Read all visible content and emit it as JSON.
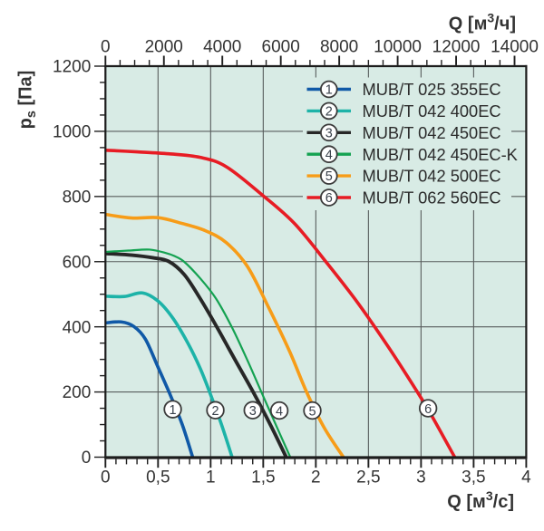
{
  "page": {
    "background": "#ffffff",
    "description": "Fan performance curves: static pressure versus air flow"
  },
  "chart_data": {
    "type": "line",
    "title": "",
    "plot": {
      "background": "#d8ebe5",
      "grid_color": "#585d5d",
      "border_color": "#1c1c1c",
      "x_min": 0,
      "x_max": 4,
      "y_min": 0,
      "y_max": 1200,
      "x_grid_step": 0.5,
      "y_grid_step": 200,
      "grid": true,
      "legend_position": "top-right-inside"
    },
    "axis_bottom": {
      "label_pre": "Q [м",
      "label_sup": "3",
      "label_post": "/с]",
      "tick_values": [
        0,
        0.5,
        1,
        1.5,
        2,
        2.5,
        3,
        3.5,
        4
      ],
      "tick_labels": [
        "0",
        "0,5",
        "1",
        "1,5",
        "2",
        "2,5",
        "3",
        "3,5",
        "4"
      ],
      "minor_step": 0.1
    },
    "axis_top": {
      "label_pre": "Q [м",
      "label_sup": "3",
      "label_post": "/ч]",
      "unit_per_bottom_unit": 3600,
      "tick_values": [
        0,
        2000,
        4000,
        6000,
        8000,
        10000,
        12000,
        14000
      ],
      "tick_labels": [
        "0",
        "2000",
        "4000",
        "6000",
        "8000",
        "10000",
        "12000",
        "14000"
      ],
      "minor_step": 500
    },
    "axis_left": {
      "label_pre": "p",
      "label_sub": "s",
      "label_post": " [Па]",
      "tick_values": [
        0,
        200,
        400,
        600,
        800,
        1000,
        1200
      ],
      "tick_labels": [
        "0",
        "200",
        "400",
        "600",
        "800",
        "1000",
        "1200"
      ],
      "minor_step": 50
    },
    "series": [
      {
        "number": "1",
        "name": "MUB/T 025 355EC",
        "color": "#1059a7",
        "width": 3.6,
        "points": [
          [
            0,
            412
          ],
          [
            0.15,
            415
          ],
          [
            0.27,
            401
          ],
          [
            0.38,
            362
          ],
          [
            0.5,
            276
          ],
          [
            0.62,
            188
          ],
          [
            0.73,
            100
          ],
          [
            0.829,
            0
          ]
        ],
        "marker": {
          "x": 0.64,
          "y": 147
        }
      },
      {
        "number": "2",
        "name": "MUB/T 042 400EC",
        "color": "#1db3a8",
        "width": 3.6,
        "points": [
          [
            0,
            494
          ],
          [
            0.18,
            493
          ],
          [
            0.35,
            504
          ],
          [
            0.5,
            479
          ],
          [
            0.64,
            427
          ],
          [
            0.78,
            352
          ],
          [
            0.9,
            273
          ],
          [
            0.99,
            200
          ],
          [
            1.1,
            103
          ],
          [
            1.204,
            0
          ]
        ],
        "marker": {
          "x": 1.045,
          "y": 144
        }
      },
      {
        "number": "3",
        "name": "MUB/T 042 450EC",
        "color": "#272727",
        "width": 3.9,
        "points": [
          [
            0,
            625
          ],
          [
            0.25,
            620
          ],
          [
            0.45,
            612
          ],
          [
            0.6,
            601
          ],
          [
            0.75,
            560
          ],
          [
            0.9,
            487
          ],
          [
            1.058,
            400
          ],
          [
            1.23,
            300
          ],
          [
            1.404,
            200
          ],
          [
            1.57,
            98
          ],
          [
            1.718,
            0
          ]
        ],
        "marker": {
          "x": 1.4,
          "y": 144
        }
      },
      {
        "number": "4",
        "name": "MUB/T 042 450EC-K",
        "color": "#14a251",
        "width": 2.2,
        "points": [
          [
            0,
            630
          ],
          [
            0.22,
            634
          ],
          [
            0.42,
            637
          ],
          [
            0.58,
            626
          ],
          [
            0.65,
            618
          ],
          [
            0.747,
            600
          ],
          [
            0.9,
            549
          ],
          [
            1.05,
            487
          ],
          [
            1.2,
            400
          ],
          [
            1.35,
            297
          ],
          [
            1.482,
            200
          ],
          [
            1.63,
            92
          ],
          [
            1.757,
            0
          ]
        ],
        "marker": {
          "x": 1.653,
          "y": 143
        }
      },
      {
        "number": "5",
        "name": "MUB/T 042 500EC",
        "color": "#f79c18",
        "width": 3.6,
        "points": [
          [
            0,
            745
          ],
          [
            0.25,
            734
          ],
          [
            0.5,
            735
          ],
          [
            0.72,
            718
          ],
          [
            0.95,
            695
          ],
          [
            1.15,
            658
          ],
          [
            1.35,
            585
          ],
          [
            1.55,
            460
          ],
          [
            1.75,
            325
          ],
          [
            1.912,
            200
          ],
          [
            2.08,
            90
          ],
          [
            2.262,
            0
          ]
        ],
        "marker": {
          "x": 1.967,
          "y": 143
        }
      },
      {
        "number": "6",
        "name": "MUB/T 062 560EC",
        "color": "#e71c24",
        "width": 3.6,
        "points": [
          [
            0,
            942
          ],
          [
            0.3,
            937
          ],
          [
            0.6,
            931
          ],
          [
            0.9,
            920
          ],
          [
            1.15,
            891
          ],
          [
            1.5,
            802
          ],
          [
            1.8,
            716
          ],
          [
            2.1,
            598
          ],
          [
            2.4,
            473
          ],
          [
            2.7,
            333
          ],
          [
            2.965,
            200
          ],
          [
            3.1,
            128
          ],
          [
            3.32,
            0
          ]
        ],
        "marker": {
          "x": 3.067,
          "y": 150
        }
      }
    ],
    "legend": {
      "entries": [
        {
          "number": "1",
          "label": "MUB/T 025 355EC"
        },
        {
          "number": "2",
          "label": "MUB/T 042 400EC"
        },
        {
          "number": "3",
          "label": "MUB/T 042 450EC"
        },
        {
          "number": "4",
          "label": "MUB/T 042 450EC-K"
        },
        {
          "number": "5",
          "label": "MUB/T 042 500EC"
        },
        {
          "number": "6",
          "label": "MUB/T 062 560EC"
        }
      ]
    },
    "marker_style": {
      "fill": "#ffffff",
      "ring": "#3b3b3b",
      "text_color": "#39414b"
    },
    "text_color": "#333333"
  }
}
